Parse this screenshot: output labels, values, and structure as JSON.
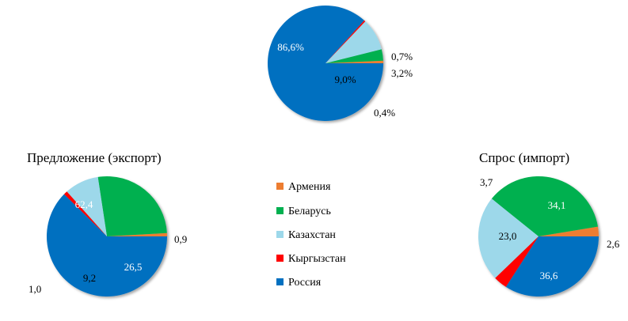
{
  "colors": {
    "armenia": "#ED7D31",
    "belarus": "#00B050",
    "kazakhstan": "#9DD8EA",
    "kyrgyzstan": "#FF0000",
    "russia": "#0070C0"
  },
  "legend": [
    {
      "key": "armenia",
      "label": "Армения"
    },
    {
      "key": "belarus",
      "label": "Беларусь"
    },
    {
      "key": "kazakhstan",
      "label": "Казахстан"
    },
    {
      "key": "kyrgyzstan",
      "label": "Кыргызстан"
    },
    {
      "key": "russia",
      "label": "Россия"
    }
  ],
  "chart_data": [
    {
      "type": "pie",
      "title": "",
      "slices": [
        {
          "key": "armenia",
          "value": 0.7,
          "label": "0,7%"
        },
        {
          "key": "belarus",
          "value": 3.2,
          "label": "3,2%"
        },
        {
          "key": "kazakhstan",
          "value": 9.0,
          "label": "9,0%"
        },
        {
          "key": "kyrgyzstan",
          "value": 0.4,
          "label": "0,4%"
        },
        {
          "key": "russia",
          "value": 86.6,
          "label": "86,6%"
        }
      ]
    },
    {
      "type": "pie",
      "title": "Предложение (экспорт)",
      "slices": [
        {
          "key": "armenia",
          "value": 0.9,
          "label": "0,9"
        },
        {
          "key": "belarus",
          "value": 26.5,
          "label": "26,5"
        },
        {
          "key": "kazakhstan",
          "value": 9.2,
          "label": "9,2"
        },
        {
          "key": "kyrgyzstan",
          "value": 1.0,
          "label": "1,0"
        },
        {
          "key": "russia",
          "value": 62.4,
          "label": "62,4"
        }
      ]
    },
    {
      "type": "pie",
      "title": "Спрос (импорт)",
      "slices": [
        {
          "key": "armenia",
          "value": 2.6,
          "label": "2,6"
        },
        {
          "key": "belarus",
          "value": 36.6,
          "label": "36,6"
        },
        {
          "key": "kazakhstan",
          "value": 23.0,
          "label": "23,0"
        },
        {
          "key": "kyrgyzstan",
          "value": 3.7,
          "label": "3,7"
        },
        {
          "key": "russia",
          "value": 34.1,
          "label": "34,1"
        }
      ]
    }
  ]
}
